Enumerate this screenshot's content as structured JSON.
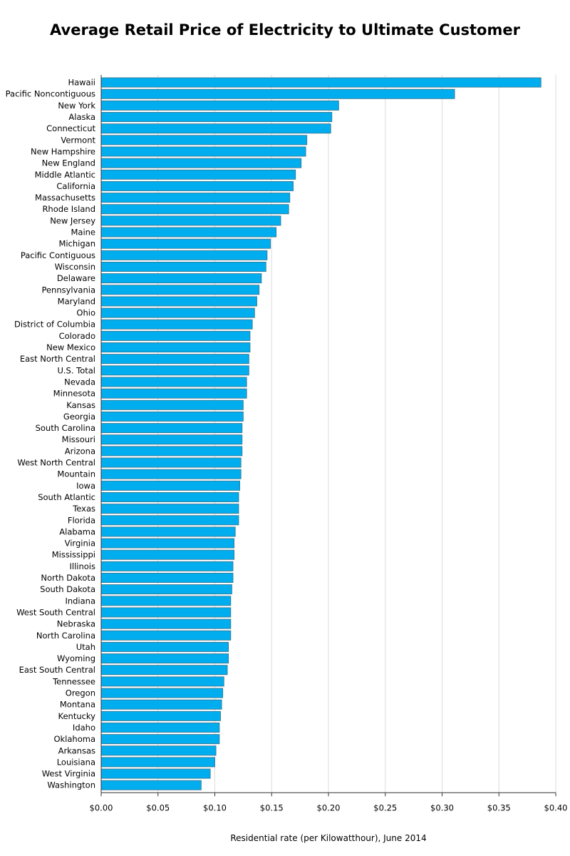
{
  "chart_data": {
    "type": "bar",
    "orientation": "horizontal",
    "title": "Average Retail Price of Electricity to Ultimate Customer",
    "xlabel": "Residential rate (per Kilowatthour), June 2014",
    "ylabel": "",
    "xlim": [
      0,
      0.4
    ],
    "xticks": [
      "$0.00",
      "$0.05",
      "$0.10",
      "$0.15",
      "$0.20",
      "$0.25",
      "$0.30",
      "$0.35",
      "$0.40"
    ],
    "grid": true,
    "bar_color": "#00aeef",
    "categories": [
      "Hawaii",
      "Pacific Noncontiguous",
      "New York",
      "Alaska",
      "Connecticut",
      "Vermont",
      "New Hampshire",
      "New England",
      "Middle Atlantic",
      "California",
      "Massachusetts",
      "Rhode Island",
      "New Jersey",
      "Maine",
      "Michigan",
      "Pacific Contiguous",
      "Wisconsin",
      "Delaware",
      "Pennsylvania",
      "Maryland",
      "Ohio",
      "District of Columbia",
      "Colorado",
      "New Mexico",
      "East North Central",
      "U.S. Total",
      "Nevada",
      "Minnesota",
      "Kansas",
      "Georgia",
      "South Carolina",
      "Missouri",
      "Arizona",
      "West North Central",
      "Mountain",
      "Iowa",
      "South Atlantic",
      "Texas",
      "Florida",
      "Alabama",
      "Virginia",
      "Mississippi",
      "Illinois",
      "North Dakota",
      "South Dakota",
      "Indiana",
      "West South Central",
      "Nebraska",
      "North Carolina",
      "Utah",
      "Wyoming",
      "East South Central",
      "Tennessee",
      "Oregon",
      "Montana",
      "Kentucky",
      "Idaho",
      "Oklahoma",
      "Arkansas",
      "Louisiana",
      "West Virginia",
      "Washington"
    ],
    "values": [
      0.387,
      0.311,
      0.209,
      0.203,
      0.202,
      0.181,
      0.18,
      0.176,
      0.171,
      0.169,
      0.166,
      0.165,
      0.158,
      0.154,
      0.149,
      0.146,
      0.145,
      0.141,
      0.139,
      0.137,
      0.135,
      0.133,
      0.131,
      0.131,
      0.13,
      0.13,
      0.128,
      0.128,
      0.125,
      0.125,
      0.124,
      0.124,
      0.124,
      0.123,
      0.123,
      0.122,
      0.121,
      0.121,
      0.121,
      0.118,
      0.117,
      0.117,
      0.116,
      0.116,
      0.115,
      0.114,
      0.114,
      0.114,
      0.114,
      0.112,
      0.112,
      0.111,
      0.108,
      0.107,
      0.106,
      0.105,
      0.104,
      0.104,
      0.101,
      0.1,
      0.096,
      0.088
    ]
  }
}
